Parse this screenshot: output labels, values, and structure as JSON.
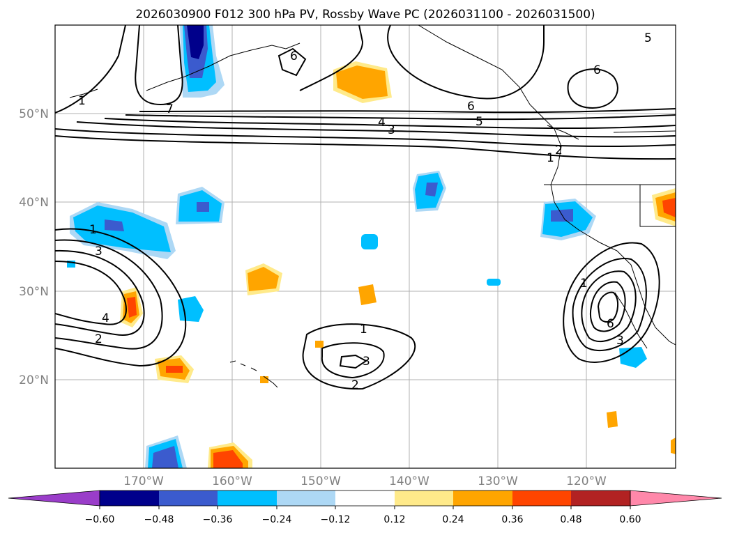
{
  "title": "2026030900 F012 300 hPa PV, Rossby Wave PC (2026031100 - 2026031500)",
  "map": {
    "lon_range": [
      -180,
      -110
    ],
    "lat_range": [
      10,
      60
    ],
    "lon_ticks": [
      "170°W",
      "160°W",
      "150°W",
      "140°W",
      "130°W",
      "120°W"
    ],
    "lat_ticks": [
      "50°N",
      "40°N",
      "30°N",
      "20°N"
    ]
  },
  "contour_labels": [
    "1",
    "2",
    "3",
    "4",
    "5",
    "6",
    "7"
  ],
  "colorbar": {
    "colors": [
      "#9a3dc9",
      "#00008b",
      "#3b5bce",
      "#00bfff",
      "#add8f5",
      "#ffffff",
      "#ffea8a",
      "#ffa500",
      "#ff4500",
      "#b22222",
      "#ff88aa"
    ],
    "ticks": [
      "−0.60",
      "−0.48",
      "−0.36",
      "−0.24",
      "−0.12",
      "0.12",
      "0.24",
      "0.36",
      "0.48",
      "0.60"
    ]
  },
  "colors": {
    "grid": "#b0b0b0",
    "tick_text": "#808080"
  }
}
